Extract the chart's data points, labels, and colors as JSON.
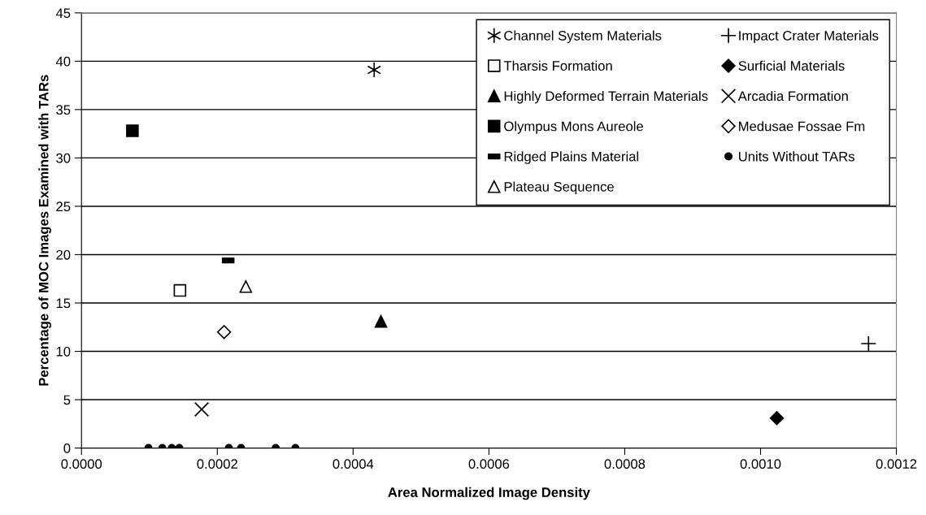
{
  "chart_data": {
    "type": "scatter",
    "xlabel": "Area Normalized Image Density",
    "ylabel": "Percentage of MOC Images Examined with TARs",
    "xlim": [
      0,
      0.0012
    ],
    "xticks": [
      {
        "value": 0,
        "label": "0.0000"
      },
      {
        "value": 0.0002,
        "label": "0.0002"
      },
      {
        "value": 0.0004,
        "label": "0.0004"
      },
      {
        "value": 0.0006,
        "label": "0.0006"
      },
      {
        "value": 0.0008,
        "label": "0.0008"
      },
      {
        "value": 0.001,
        "label": "0.0010"
      },
      {
        "value": 0.0012,
        "label": "0.0012"
      }
    ],
    "ylim": [
      0,
      45
    ],
    "yticks": [
      0,
      5,
      10,
      15,
      20,
      25,
      30,
      35,
      40,
      45
    ],
    "grid": "y",
    "legend": "top right",
    "series": [
      {
        "name": "Channel System Materials",
        "color": "#000000",
        "x": [
          0.000431
        ],
        "values": [
          39.1
        ]
      },
      {
        "name": "Tharsis Formation",
        "color": "#000000",
        "x": [
          0.000145
        ],
        "values": [
          16.3
        ]
      },
      {
        "name": "Highly Deformed Terrain Materials",
        "color": "#000000",
        "x": [
          0.000441
        ],
        "values": [
          13.1
        ]
      },
      {
        "name": "Olympus Mons Aureole",
        "color": "#000000",
        "x": [
          7.5e-05
        ],
        "values": [
          32.8
        ]
      },
      {
        "name": "Ridged Plains Material",
        "color": "#000000",
        "x": [
          0.000216
        ],
        "values": [
          19.4
        ]
      },
      {
        "name": "Plateau Sequence",
        "color": "#000000",
        "x": [
          0.000242
        ],
        "values": [
          16.7
        ]
      },
      {
        "name": "Impact Crater Materials",
        "color": "#000000",
        "x": [
          0.001159
        ],
        "values": [
          10.8
        ]
      },
      {
        "name": "Surficial Materials",
        "color": "#000000",
        "x": [
          0.001024
        ],
        "values": [
          3.1
        ]
      },
      {
        "name": "Arcadia Formation",
        "color": "#000000",
        "x": [
          0.000177
        ],
        "values": [
          4.0
        ]
      },
      {
        "name": "Medusae Fossae Fm",
        "color": "#000000",
        "x": [
          0.00021
        ],
        "values": [
          12.0
        ]
      },
      {
        "name": "Units Without TARs",
        "color": "#000000",
        "x": [
          9.86e-05,
          0.000119,
          0.000133,
          0.000144,
          0.000217,
          0.000235,
          0.000286,
          0.000315
        ],
        "values": [
          0,
          0,
          0,
          0,
          0,
          0,
          0,
          0
        ]
      }
    ]
  }
}
